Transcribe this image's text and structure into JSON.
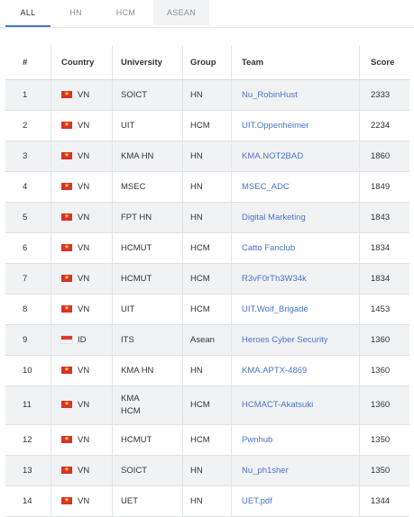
{
  "tabs": [
    "ALL",
    "HN",
    "HCM",
    "ASEAN"
  ],
  "columns": {
    "rank": "#",
    "country": "Country",
    "university": "University",
    "group": "Group",
    "team": "Team",
    "score": "Score"
  },
  "rows": [
    {
      "rank": "1",
      "country": "VN",
      "flag": "vn",
      "university": "SOICT",
      "group": "HN",
      "team": "Nu_RobinHust",
      "score": "2333"
    },
    {
      "rank": "2",
      "country": "VN",
      "flag": "vn",
      "university": "UIT",
      "group": "HCM",
      "team": "UIT.Oppenheimer",
      "score": "2234"
    },
    {
      "rank": "3",
      "country": "VN",
      "flag": "vn",
      "university": "KMA HN",
      "group": "HN",
      "team": "KMA.NOT2BAD",
      "score": "1860"
    },
    {
      "rank": "4",
      "country": "VN",
      "flag": "vn",
      "university": "MSEC",
      "group": "HN",
      "team": "MSEC_ADC",
      "score": "1849"
    },
    {
      "rank": "5",
      "country": "VN",
      "flag": "vn",
      "university": "FPT HN",
      "group": "HN",
      "team": "Digital Marketing",
      "score": "1843"
    },
    {
      "rank": "6",
      "country": "VN",
      "flag": "vn",
      "university": "HCMUT",
      "group": "HCM",
      "team": "Catto Fanclub",
      "score": "1834"
    },
    {
      "rank": "7",
      "country": "VN",
      "flag": "vn",
      "university": "HCMUT",
      "group": "HCM",
      "team": "R3vF0rTh3W34k",
      "score": "1834"
    },
    {
      "rank": "8",
      "country": "VN",
      "flag": "vn",
      "university": "UIT",
      "group": "HCM",
      "team": "UIT.Wolf_Brigade",
      "score": "1453"
    },
    {
      "rank": "9",
      "country": "ID",
      "flag": "id",
      "university": "ITS",
      "group": "Asean",
      "team": "Heroes Cyber Security",
      "score": "1360"
    },
    {
      "rank": "10",
      "country": "VN",
      "flag": "vn",
      "university": "KMA HN",
      "group": "HN",
      "team": "KMA.APTX-4869",
      "score": "1360"
    },
    {
      "rank": "11",
      "country": "VN",
      "flag": "vn",
      "university": "KMA",
      "university2": "HCM",
      "group": "HCM",
      "team": "HCMACT-Akatsuki",
      "score": "1360"
    },
    {
      "rank": "12",
      "country": "VN",
      "flag": "vn",
      "university": "HCMUT",
      "group": "HCM",
      "team": "Pwnhub",
      "score": "1350"
    },
    {
      "rank": "13",
      "country": "VN",
      "flag": "vn",
      "university": "SOICT",
      "group": "HN",
      "team": "Nu_ph1sher",
      "score": "1350"
    },
    {
      "rank": "14",
      "country": "VN",
      "flag": "vn",
      "university": "UET",
      "group": "HN",
      "team": "UET.pdf",
      "score": "1344"
    }
  ]
}
